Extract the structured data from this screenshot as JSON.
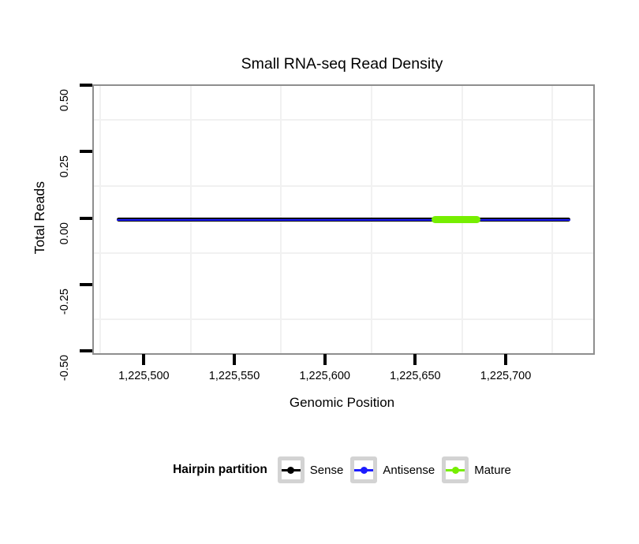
{
  "chart_data": {
    "type": "line",
    "title": "Small RNA-seq Read Density",
    "xlabel": "Genomic Position",
    "ylabel": "Total Reads",
    "xlim": [
      1225471.5,
      1225747.5
    ],
    "ylim": [
      -0.504,
      0.504
    ],
    "x_ticks": [
      {
        "value": 1225500,
        "label": "1,225,500"
      },
      {
        "value": 1225550,
        "label": "1,225,550"
      },
      {
        "value": 1225600,
        "label": "1,225,600"
      },
      {
        "value": 1225650,
        "label": "1,225,650"
      },
      {
        "value": 1225700,
        "label": "1,225,700"
      }
    ],
    "y_ticks": [
      {
        "value": 0.5,
        "label": "0.50"
      },
      {
        "value": 0.25,
        "label": "0.25"
      },
      {
        "value": 0.0,
        "label": "0.00"
      },
      {
        "value": -0.25,
        "label": "-0.25"
      },
      {
        "value": -0.5,
        "label": "-0.50"
      }
    ],
    "x_minor_gridlines": [
      1225475,
      1225525,
      1225575,
      1225625,
      1225675,
      1225725
    ],
    "y_minor_gridlines": [
      0.375,
      0.125,
      -0.125,
      -0.375
    ],
    "grid": {
      "major": false,
      "minor": true
    },
    "series": [
      {
        "name": "Sense",
        "color": "#000000",
        "y": 0,
        "x_start": 1225484,
        "x_end": 1225735,
        "stroke_px": 5
      },
      {
        "name": "Antisense",
        "color": "#1C1CFF",
        "y": 0,
        "x_start": 1225484,
        "x_end": 1225735,
        "stroke_px": 2
      },
      {
        "name": "Mature",
        "color": "#76EE00",
        "y": 0,
        "x_start": 1225658,
        "x_end": 1225685,
        "stroke_px": 9
      }
    ],
    "legend": {
      "title": "Hairpin partition",
      "position": "bottom",
      "items": [
        {
          "label": "Sense",
          "color": "#000000"
        },
        {
          "label": "Antisense",
          "color": "#1C1CFF"
        },
        {
          "label": "Mature",
          "color": "#76EE00"
        }
      ]
    },
    "colors": {
      "background": "#FFFFFF",
      "panel_border": "#8E8E8E",
      "minor_grid": "#F1F1F1",
      "tick": "#000000"
    }
  }
}
